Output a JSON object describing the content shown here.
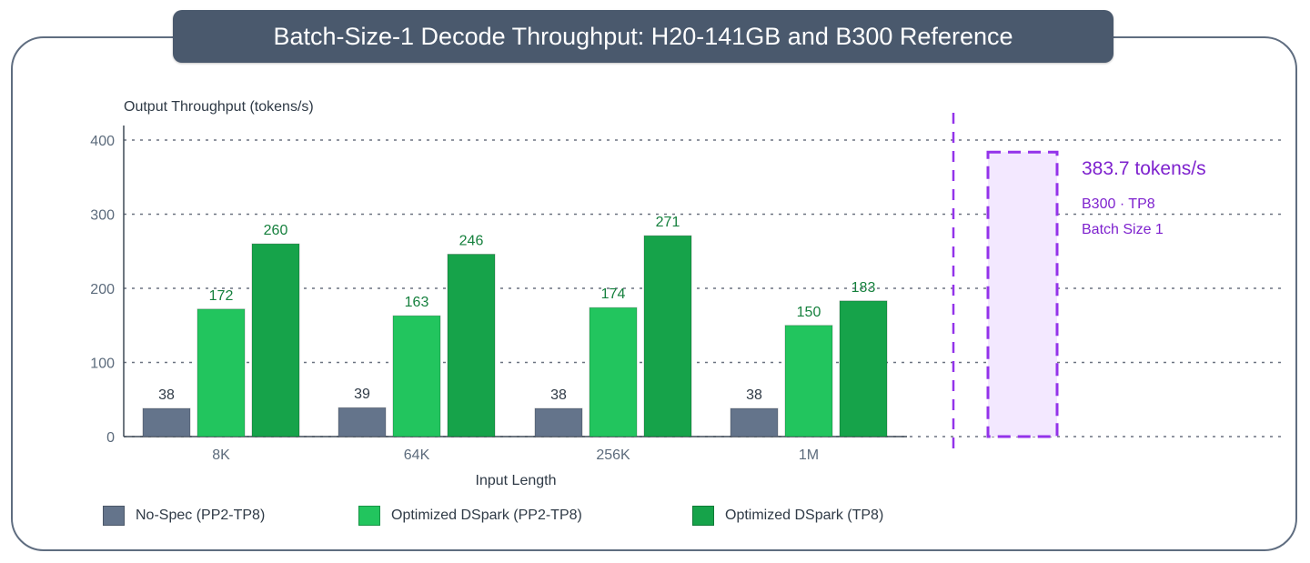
{
  "title": "Batch-Size-1 Decode Throughput: H20-141GB and B300 Reference",
  "colors": {
    "no_spec": "#64748b",
    "pp2": "#22c55e",
    "tp8": "#16a34a",
    "label_green": "#15803d",
    "reference": "#9333ea",
    "reference_fill": "#f3e8ff"
  },
  "chart_data": {
    "type": "bar",
    "ylabel": "Output Throughput (tokens/s)",
    "xlabel": "Input Length",
    "ylim": [
      0,
      400
    ],
    "yticks": [
      0,
      100,
      200,
      300,
      400
    ],
    "grid": true,
    "categories": [
      "8K",
      "64K",
      "256K",
      "1M"
    ],
    "series": [
      {
        "name": "No-Spec (PP2-TP8)",
        "values": [
          38,
          39,
          38,
          38
        ],
        "color": "#64748b"
      },
      {
        "name": "Optimized DSpark (PP2-TP8)",
        "values": [
          172,
          163,
          174,
          150
        ],
        "color": "#22c55e"
      },
      {
        "name": "Optimized DSpark (TP8)",
        "values": [
          260,
          246,
          271,
          183
        ],
        "color": "#16a34a"
      }
    ],
    "legend_position": "bottom",
    "reference": {
      "value": 383.7,
      "value_label": "383.7 tokens/s",
      "line1": "B300 · TP8",
      "line2": "Batch Size 1"
    }
  }
}
